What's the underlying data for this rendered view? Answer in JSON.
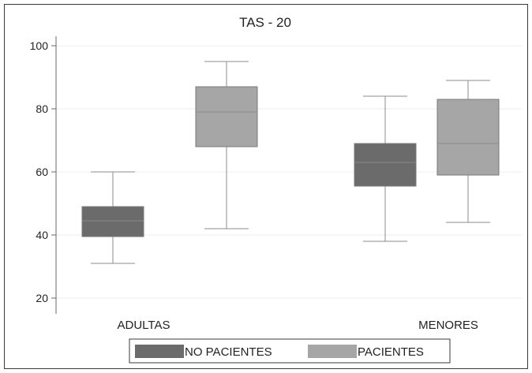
{
  "chart_data": {
    "type": "boxplot",
    "title": "TAS - 20",
    "xlabel": "",
    "ylabel": "",
    "ylim": [
      15,
      103
    ],
    "yticks": [
      20,
      40,
      60,
      80,
      100
    ],
    "grid": true,
    "legend_position": "bottom",
    "categories": [
      "ADULTAS",
      "MENORES"
    ],
    "series": [
      {
        "name": "NO PACIENTES",
        "color": "#6b6b6b",
        "boxes": [
          {
            "whisker_low": 31,
            "q1": 39.5,
            "median": 44.5,
            "q3": 49,
            "whisker_high": 60
          },
          {
            "whisker_low": 38,
            "q1": 55.5,
            "median": 63,
            "q3": 69,
            "whisker_high": 84
          }
        ]
      },
      {
        "name": "PACIENTES",
        "color": "#a6a6a6",
        "boxes": [
          {
            "whisker_low": 42,
            "q1": 68,
            "median": 79,
            "q3": 87,
            "whisker_high": 95
          },
          {
            "whisker_low": 44,
            "q1": 59,
            "median": 69,
            "q3": 83,
            "whisker_high": 89
          }
        ]
      }
    ]
  }
}
